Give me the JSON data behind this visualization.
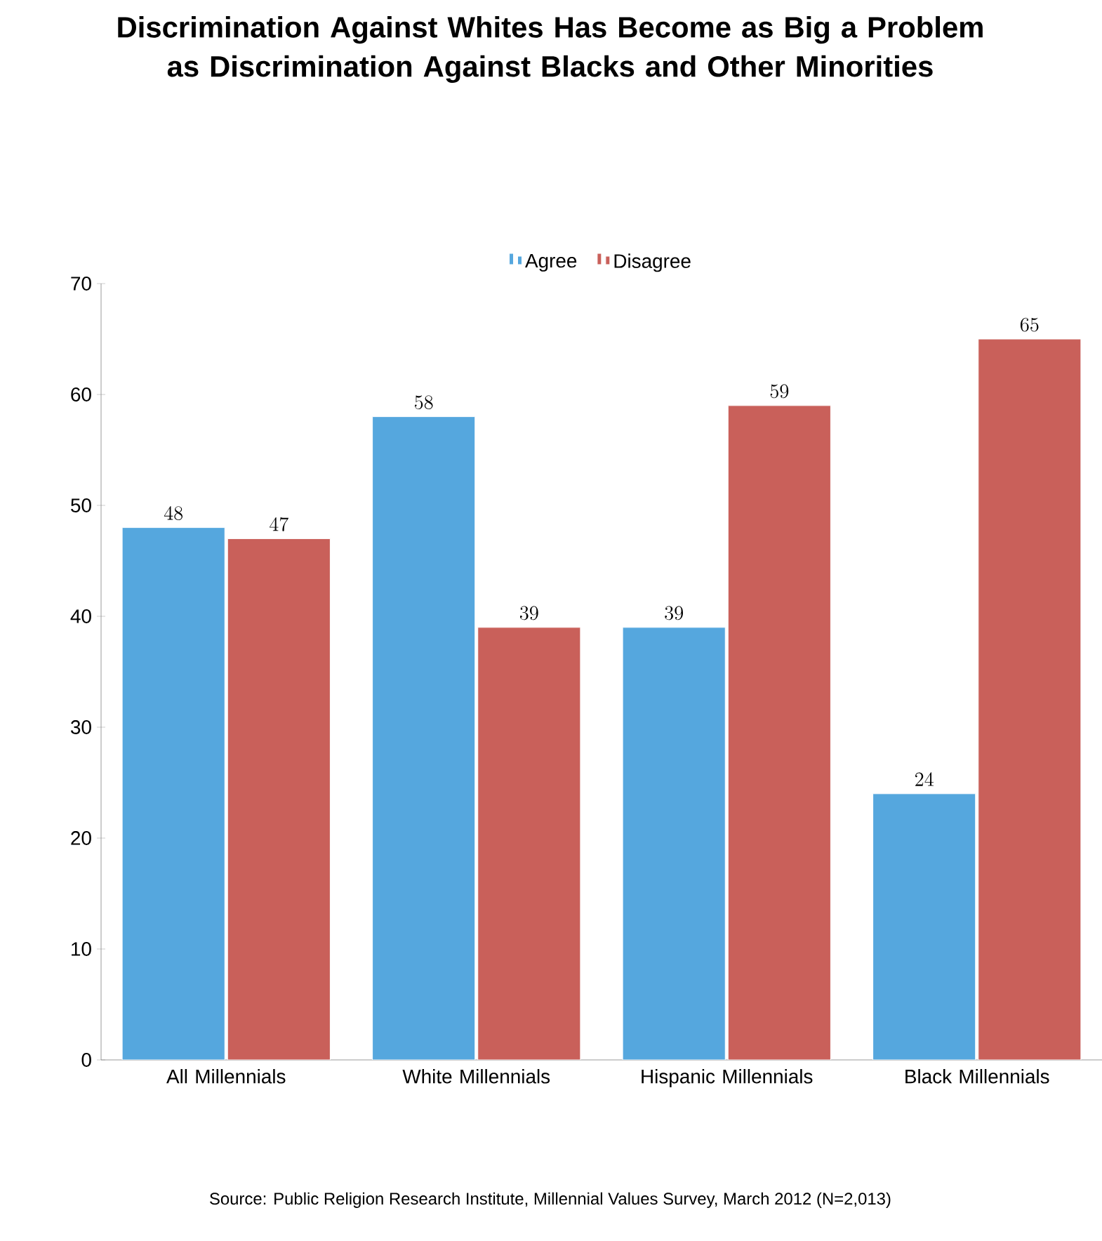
{
  "chart_data": {
    "type": "bar",
    "title": "Discrimination Against Whites Has Become as Big a Problem as Discrimination Against Blacks and Other Minorities",
    "categories": [
      "All Millennials",
      "White Millennials",
      "Hispanic Millennials",
      "Black Millennials"
    ],
    "series": [
      {
        "name": "Agree",
        "color": "#55a7de",
        "values": [
          48,
          58,
          39,
          24
        ]
      },
      {
        "name": "Disagree",
        "color": "#c9605a",
        "values": [
          47,
          39,
          59,
          65
        ]
      }
    ],
    "ylim": [
      0,
      70
    ],
    "yticks": [
      0,
      10,
      20,
      30,
      40,
      50,
      60,
      70
    ],
    "grid": false,
    "legend": "top",
    "data_labels": true,
    "annotations": [
      "Source: Public Religion Research Institute, Millennial Values Survey, March 2012 (N=2,013)"
    ]
  }
}
